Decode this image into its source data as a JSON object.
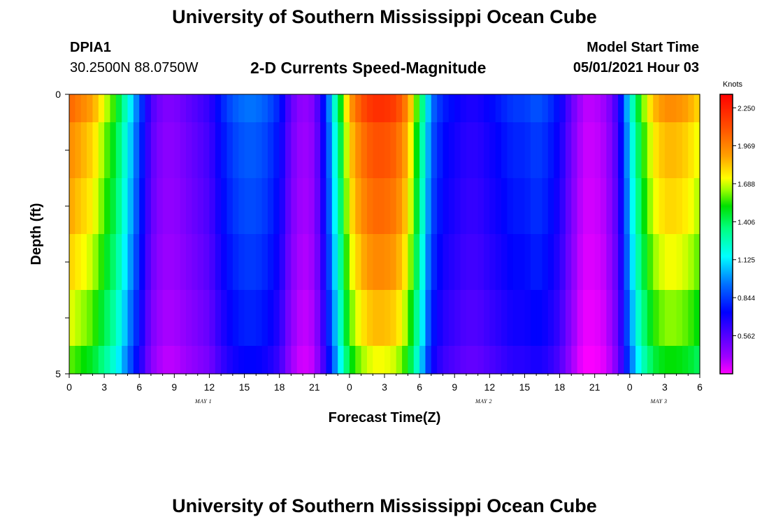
{
  "header": {
    "title_top": "University of Southern Mississippi Ocean Cube",
    "title_bottom": "University of Southern Mississippi Ocean Cube",
    "station_id": "DPIA1",
    "coordinates": "30.2500N  88.0750W",
    "model_start_label": "Model Start Time",
    "model_start_value": "05/01/2021 Hour 03"
  },
  "chart_data": {
    "type": "heatmap",
    "title": "2-D Currents Speed-Magnitude",
    "xlabel": "Forecast Time(Z)",
    "ylabel": "Depth (ft)",
    "units_label": "Knots",
    "x_tick_labels": [
      "0",
      "3",
      "6",
      "9",
      "12",
      "15",
      "18",
      "21",
      "0",
      "3",
      "6",
      "9",
      "12",
      "15",
      "18",
      "21",
      "0",
      "3",
      "6"
    ],
    "date_labels": [
      {
        "label": "MAY 1",
        "hour": 11.5
      },
      {
        "label": "MAY 2",
        "hour": 35.5
      },
      {
        "label": "MAY 3",
        "hour": 50.5
      }
    ],
    "y_tick_labels": [
      "0",
      "5"
    ],
    "ylim": [
      0,
      5
    ],
    "depth_rows": [
      0.25,
      1.0,
      2.0,
      3.0,
      4.0,
      4.75
    ],
    "xlim": [
      0,
      54
    ],
    "colorbar": {
      "ticks": [
        "2.250",
        "1.969",
        "1.688",
        "1.406",
        "1.125",
        "0.844",
        "0.562"
      ],
      "tick_values": [
        2.25,
        1.969,
        1.688,
        1.406,
        1.125,
        0.844,
        0.562
      ],
      "range": [
        0.28,
        2.35
      ]
    },
    "speed_profile_hours": [
      0,
      2,
      4,
      5,
      6,
      7,
      8,
      9,
      10,
      11,
      12,
      13,
      14,
      15,
      16,
      17,
      18,
      19,
      20,
      21,
      22,
      23,
      24,
      25,
      26,
      27,
      28,
      29,
      30,
      31,
      32,
      33,
      34,
      35,
      36,
      37,
      38,
      39,
      40,
      41,
      42,
      43,
      44,
      45,
      46,
      47,
      48,
      49,
      50,
      51,
      52,
      53,
      54
    ],
    "speed_profile_knots": [
      1.95,
      1.8,
      1.45,
      1.15,
      0.85,
      0.55,
      0.45,
      0.45,
      0.5,
      0.55,
      0.6,
      0.75,
      0.85,
      0.9,
      0.9,
      0.85,
      0.75,
      0.5,
      0.4,
      0.45,
      0.8,
      1.3,
      1.8,
      2.0,
      2.1,
      2.1,
      2.05,
      1.85,
      1.4,
      0.9,
      0.75,
      0.7,
      0.65,
      0.65,
      0.7,
      0.75,
      0.8,
      0.8,
      0.85,
      0.8,
      0.7,
      0.5,
      0.35,
      0.35,
      0.4,
      0.6,
      1.1,
      1.5,
      1.75,
      1.85,
      1.85,
      1.8,
      1.7
    ],
    "depth_factors": [
      1.05,
      1.0,
      0.97,
      0.93,
      0.88,
      0.82
    ]
  }
}
